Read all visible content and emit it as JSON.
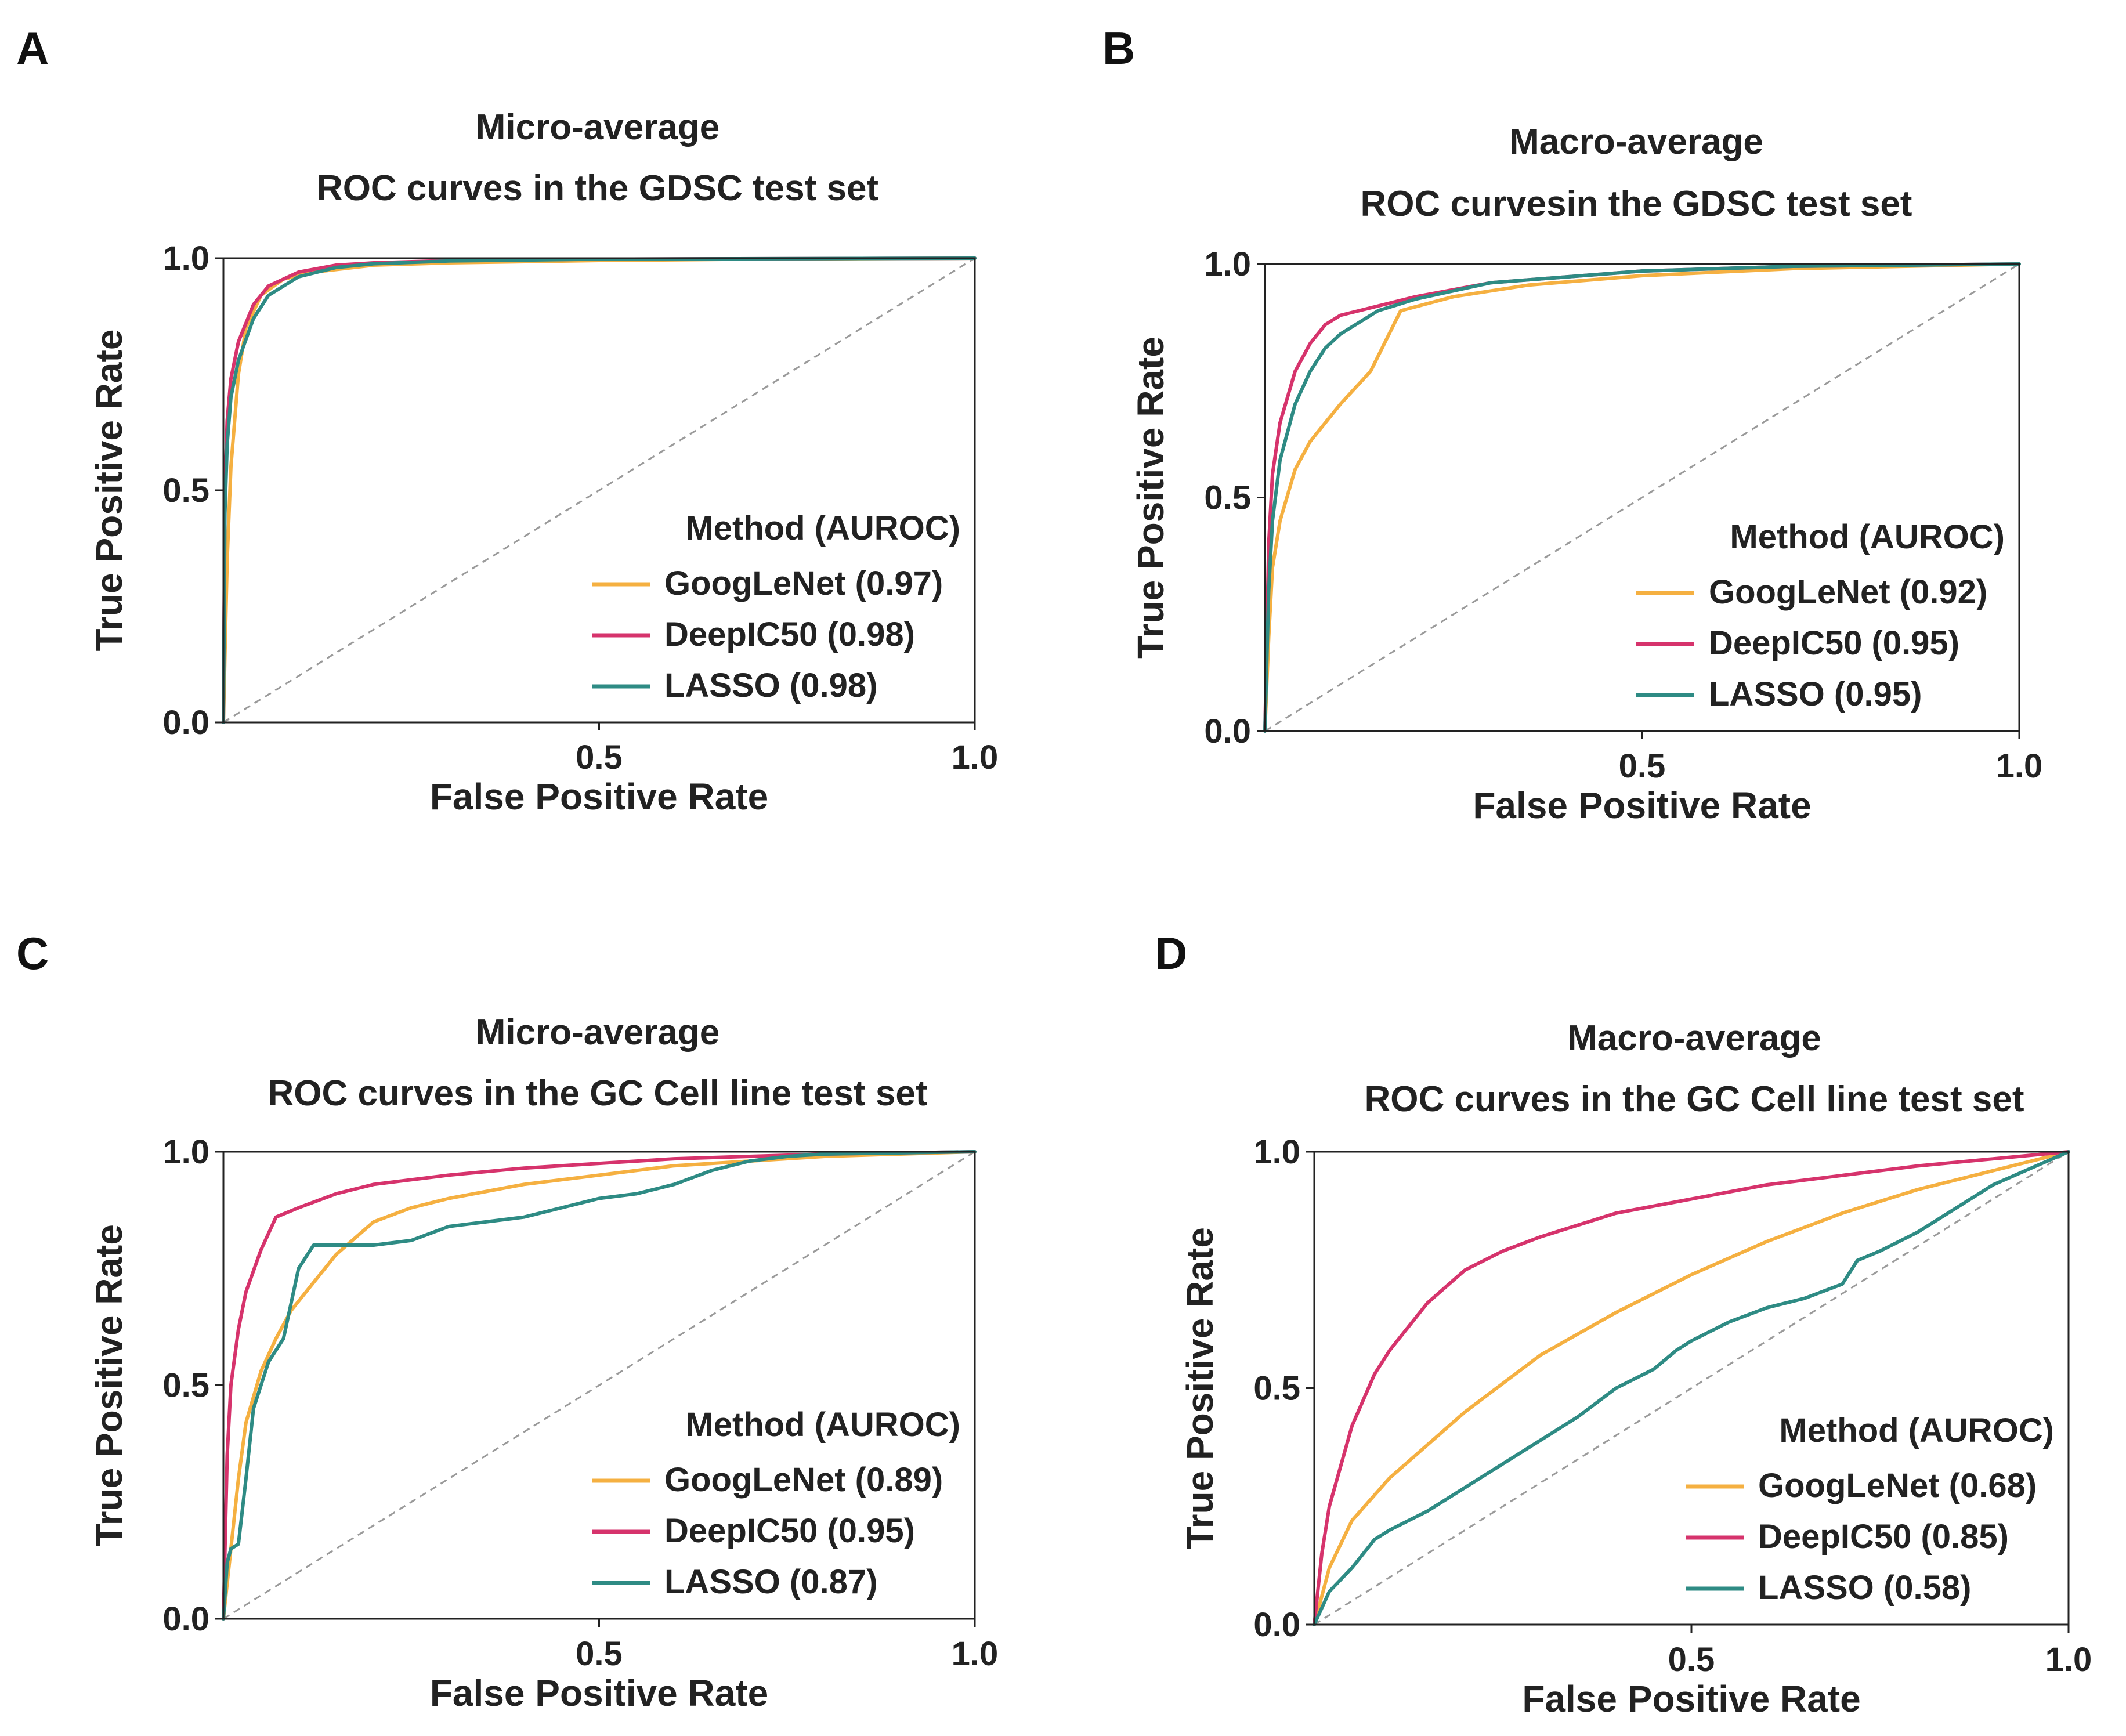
{
  "colors": {
    "GoogLeNet": "#f5b041",
    "DeepIC50": "#d6336c",
    "LASSO": "#2e8b84",
    "diagonal": "#9a9a9a"
  },
  "chart_data": [
    {
      "panel_label": "A",
      "type": "line",
      "title_line1": "Micro-average",
      "title_line2": "ROC curves in the GDSC test set",
      "xlabel": "False Positive Rate",
      "ylabel": "True Positive Rate",
      "xlim": [
        0,
        1
      ],
      "ylim": [
        0,
        1
      ],
      "x_ticks": [
        "0.5",
        "1.0"
      ],
      "y_ticks": [
        "0.0",
        "0.5",
        "1.0"
      ],
      "legend_title": "Method (AUROC)",
      "legend_position": "bottom-right",
      "series": [
        {
          "name": "GoogLeNet",
          "label": "GoogLeNet (0.97)",
          "auroc": 0.97,
          "x": [
            0,
            0.005,
            0.01,
            0.02,
            0.03,
            0.05,
            0.08,
            0.12,
            0.2,
            0.3,
            0.5,
            0.7,
            1.0
          ],
          "y": [
            0,
            0.35,
            0.55,
            0.75,
            0.85,
            0.92,
            0.955,
            0.97,
            0.985,
            0.99,
            0.995,
            0.998,
            1.0
          ]
        },
        {
          "name": "DeepIC50",
          "label": "DeepIC50 (0.98)",
          "auroc": 0.98,
          "x": [
            0,
            0.002,
            0.005,
            0.01,
            0.02,
            0.04,
            0.06,
            0.1,
            0.15,
            0.2,
            0.3,
            0.5,
            1.0
          ],
          "y": [
            0,
            0.5,
            0.65,
            0.74,
            0.82,
            0.9,
            0.94,
            0.97,
            0.985,
            0.99,
            0.995,
            0.998,
            1.0
          ]
        },
        {
          "name": "LASSO",
          "label": "LASSO (0.98)",
          "auroc": 0.98,
          "x": [
            0,
            0.002,
            0.005,
            0.01,
            0.02,
            0.04,
            0.06,
            0.1,
            0.15,
            0.2,
            0.3,
            0.5,
            1.0
          ],
          "y": [
            0,
            0.45,
            0.6,
            0.7,
            0.78,
            0.87,
            0.92,
            0.96,
            0.98,
            0.988,
            0.994,
            0.998,
            1.0
          ]
        }
      ]
    },
    {
      "panel_label": "B",
      "type": "line",
      "title_line1": "Macro-average",
      "title_line2": "ROC curvesin the GDSC test set",
      "xlabel": "False Positive Rate",
      "ylabel": "True Positive Rate",
      "xlim": [
        0,
        1
      ],
      "ylim": [
        0,
        1
      ],
      "x_ticks": [
        "0.5",
        "1.0"
      ],
      "y_ticks": [
        "0.0",
        "0.5",
        "1.0"
      ],
      "legend_title": "Method (AUROC)",
      "legend_position": "bottom-right",
      "series": [
        {
          "name": "GoogLeNet",
          "label": "GoogLeNet (0.92)",
          "auroc": 0.92,
          "x": [
            0,
            0.005,
            0.01,
            0.02,
            0.04,
            0.06,
            0.1,
            0.14,
            0.18,
            0.25,
            0.35,
            0.5,
            0.7,
            1.0
          ],
          "y": [
            0,
            0.2,
            0.35,
            0.45,
            0.56,
            0.62,
            0.7,
            0.77,
            0.9,
            0.93,
            0.955,
            0.975,
            0.99,
            1.0
          ]
        },
        {
          "name": "DeepIC50",
          "label": "DeepIC50 (0.95)",
          "auroc": 0.95,
          "x": [
            0,
            0.005,
            0.01,
            0.02,
            0.04,
            0.06,
            0.08,
            0.1,
            0.15,
            0.2,
            0.3,
            0.5,
            0.7,
            1.0
          ],
          "y": [
            0,
            0.4,
            0.55,
            0.66,
            0.77,
            0.83,
            0.87,
            0.89,
            0.91,
            0.93,
            0.96,
            0.985,
            0.995,
            1.0
          ]
        },
        {
          "name": "LASSO",
          "label": "LASSO (0.95)",
          "auroc": 0.95,
          "x": [
            0,
            0.005,
            0.01,
            0.02,
            0.04,
            0.06,
            0.08,
            0.1,
            0.15,
            0.2,
            0.3,
            0.5,
            0.7,
            1.0
          ],
          "y": [
            0,
            0.3,
            0.45,
            0.58,
            0.7,
            0.77,
            0.82,
            0.85,
            0.9,
            0.925,
            0.96,
            0.985,
            0.995,
            1.0
          ]
        }
      ]
    },
    {
      "panel_label": "C",
      "type": "line",
      "title_line1": "Micro-average",
      "title_line2": "ROC curves in the GC Cell line test set",
      "xlabel": "False Positive Rate",
      "ylabel": "True Positive Rate",
      "xlim": [
        0,
        1
      ],
      "ylim": [
        0,
        1
      ],
      "x_ticks": [
        "0.5",
        "1.0"
      ],
      "y_ticks": [
        "0.0",
        "0.5",
        "1.0"
      ],
      "legend_title": "Method (AUROC)",
      "legend_position": "bottom-right",
      "series": [
        {
          "name": "GoogLeNet",
          "label": "GoogLeNet (0.89)",
          "auroc": 0.89,
          "x": [
            0,
            0.01,
            0.02,
            0.03,
            0.05,
            0.07,
            0.09,
            0.12,
            0.15,
            0.2,
            0.25,
            0.3,
            0.4,
            0.5,
            0.6,
            0.7,
            0.8,
            1.0
          ],
          "y": [
            0,
            0.15,
            0.3,
            0.42,
            0.53,
            0.6,
            0.66,
            0.72,
            0.78,
            0.85,
            0.88,
            0.9,
            0.93,
            0.95,
            0.97,
            0.98,
            0.99,
            1.0
          ]
        },
        {
          "name": "DeepIC50",
          "label": "DeepIC50 (0.95)",
          "auroc": 0.95,
          "x": [
            0,
            0.005,
            0.01,
            0.02,
            0.03,
            0.05,
            0.07,
            0.1,
            0.15,
            0.2,
            0.3,
            0.4,
            0.5,
            0.6,
            0.7,
            0.8,
            1.0
          ],
          "y": [
            0,
            0.35,
            0.5,
            0.62,
            0.7,
            0.79,
            0.86,
            0.88,
            0.91,
            0.93,
            0.95,
            0.965,
            0.975,
            0.985,
            0.99,
            0.995,
            1.0
          ]
        },
        {
          "name": "LASSO",
          "label": "LASSO (0.87)",
          "auroc": 0.87,
          "x": [
            0,
            0.005,
            0.01,
            0.02,
            0.03,
            0.04,
            0.05,
            0.06,
            0.08,
            0.1,
            0.12,
            0.2,
            0.25,
            0.3,
            0.4,
            0.45,
            0.5,
            0.55,
            0.6,
            0.65,
            0.7,
            0.75,
            0.8,
            1.0
          ],
          "y": [
            0,
            0.12,
            0.15,
            0.16,
            0.3,
            0.45,
            0.5,
            0.55,
            0.6,
            0.75,
            0.8,
            0.8,
            0.81,
            0.84,
            0.86,
            0.88,
            0.9,
            0.91,
            0.93,
            0.96,
            0.98,
            0.99,
            0.995,
            1.0
          ]
        }
      ]
    },
    {
      "panel_label": "D",
      "type": "line",
      "title_line1": "Macro-average",
      "title_line2": "ROC curves in the GC Cell line test set",
      "xlabel": "False Positive Rate",
      "ylabel": "True Positive Rate",
      "xlim": [
        0,
        1
      ],
      "ylim": [
        0,
        1
      ],
      "x_ticks": [
        "0.5",
        "1.0"
      ],
      "y_ticks": [
        "0.0",
        "0.5",
        "1.0"
      ],
      "legend_title": "Method (AUROC)",
      "legend_position": "bottom-right",
      "series": [
        {
          "name": "GoogLeNet",
          "label": "GoogLeNet (0.68)",
          "auroc": 0.68,
          "x": [
            0,
            0.02,
            0.05,
            0.1,
            0.2,
            0.3,
            0.4,
            0.5,
            0.6,
            0.7,
            0.8,
            0.9,
            1.0
          ],
          "y": [
            0,
            0.12,
            0.22,
            0.31,
            0.45,
            0.57,
            0.66,
            0.74,
            0.81,
            0.87,
            0.92,
            0.96,
            1.0
          ]
        },
        {
          "name": "DeepIC50",
          "label": "DeepIC50 (0.85)",
          "auroc": 0.85,
          "x": [
            0,
            0.01,
            0.02,
            0.05,
            0.08,
            0.1,
            0.15,
            0.2,
            0.25,
            0.3,
            0.4,
            0.5,
            0.6,
            0.7,
            0.8,
            0.9,
            1.0
          ],
          "y": [
            0,
            0.15,
            0.25,
            0.42,
            0.53,
            0.58,
            0.68,
            0.75,
            0.79,
            0.82,
            0.87,
            0.9,
            0.93,
            0.95,
            0.97,
            0.985,
            1.0
          ]
        },
        {
          "name": "LASSO",
          "label": "LASSO (0.58)",
          "auroc": 0.58,
          "x": [
            0,
            0.02,
            0.05,
            0.08,
            0.1,
            0.15,
            0.2,
            0.25,
            0.3,
            0.35,
            0.4,
            0.45,
            0.48,
            0.5,
            0.55,
            0.6,
            0.65,
            0.7,
            0.72,
            0.75,
            0.8,
            0.85,
            0.9,
            1.0
          ],
          "y": [
            0,
            0.07,
            0.12,
            0.18,
            0.2,
            0.24,
            0.29,
            0.34,
            0.39,
            0.44,
            0.5,
            0.54,
            0.58,
            0.6,
            0.64,
            0.67,
            0.69,
            0.72,
            0.77,
            0.79,
            0.83,
            0.88,
            0.93,
            1.0
          ]
        }
      ]
    }
  ]
}
